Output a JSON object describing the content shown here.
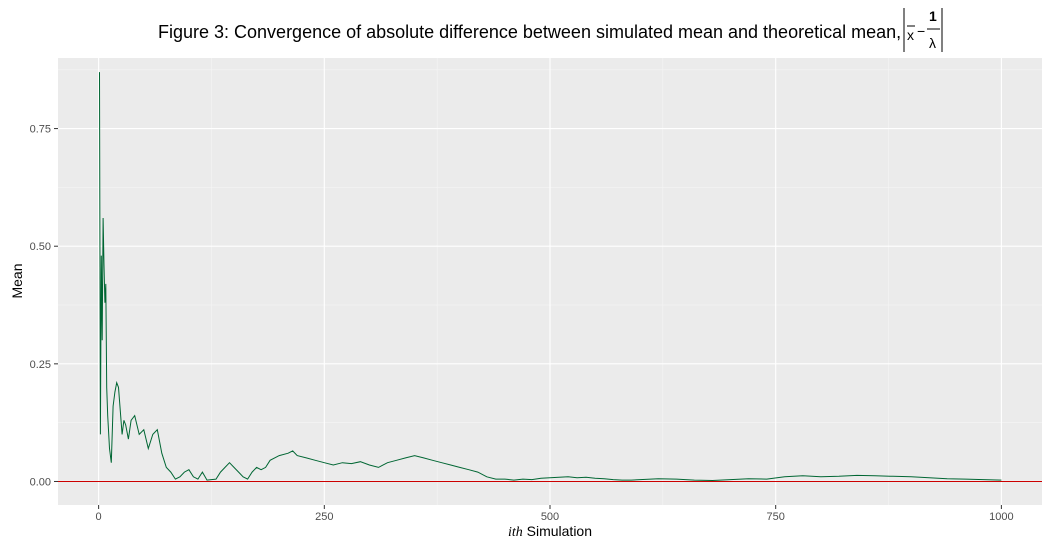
{
  "chart_data": {
    "type": "line",
    "title": "Figure 3: Convergence of absolute difference between simulated mean and theoretical mean,",
    "title_math": {
      "xbar": "x",
      "minus": "−",
      "numerator": "1",
      "denominator": "λ"
    },
    "xlabel_italic": "ith",
    "xlabel_rest": " Simulation",
    "ylabel": "Mean",
    "xlim": [
      -45,
      1045
    ],
    "ylim": [
      -0.05,
      0.9
    ],
    "x_ticks": [
      0,
      250,
      500,
      750,
      1000
    ],
    "x_tick_labels": [
      "0",
      "250",
      "500",
      "750",
      "1000"
    ],
    "y_ticks": [
      0,
      0.25,
      0.5,
      0.75
    ],
    "y_tick_labels": [
      "0.00",
      "0.25",
      "0.50",
      "0.75"
    ],
    "grid": true,
    "reference_line": {
      "y": 0,
      "color": "#cc0000"
    },
    "series": [
      {
        "color": "#006633",
        "x": [
          1,
          2,
          3,
          4,
          5,
          6,
          7,
          8,
          9,
          10,
          12,
          14,
          16,
          18,
          20,
          22,
          24,
          26,
          28,
          30,
          33,
          36,
          40,
          45,
          50,
          55,
          60,
          65,
          70,
          75,
          80,
          85,
          90,
          95,
          100,
          105,
          110,
          115,
          120,
          125,
          130,
          135,
          140,
          145,
          150,
          155,
          160,
          165,
          170,
          175,
          180,
          185,
          190,
          200,
          210,
          215,
          220,
          230,
          240,
          250,
          260,
          270,
          280,
          290,
          300,
          310,
          320,
          330,
          340,
          350,
          360,
          370,
          380,
          390,
          400,
          410,
          420,
          430,
          440,
          450,
          460,
          470,
          480,
          490,
          500,
          510,
          520,
          530,
          540,
          550,
          560,
          570,
          580,
          590,
          600,
          620,
          640,
          660,
          680,
          700,
          720,
          740,
          760,
          780,
          800,
          820,
          840,
          860,
          880,
          900,
          920,
          940,
          960,
          980,
          1000
        ],
        "y": [
          0.87,
          0.1,
          0.48,
          0.3,
          0.56,
          0.46,
          0.38,
          0.42,
          0.2,
          0.14,
          0.07,
          0.04,
          0.16,
          0.19,
          0.21,
          0.2,
          0.15,
          0.1,
          0.13,
          0.12,
          0.09,
          0.13,
          0.14,
          0.1,
          0.11,
          0.07,
          0.1,
          0.11,
          0.06,
          0.03,
          0.02,
          0.005,
          0.01,
          0.02,
          0.025,
          0.01,
          0.005,
          0.02,
          0.003,
          0.004,
          0.005,
          0.02,
          0.03,
          0.04,
          0.03,
          0.02,
          0.01,
          0.005,
          0.02,
          0.03,
          0.025,
          0.03,
          0.045,
          0.055,
          0.06,
          0.065,
          0.055,
          0.05,
          0.045,
          0.04,
          0.035,
          0.04,
          0.038,
          0.042,
          0.035,
          0.03,
          0.04,
          0.045,
          0.05,
          0.055,
          0.05,
          0.045,
          0.04,
          0.035,
          0.03,
          0.025,
          0.02,
          0.01,
          0.005,
          0.005,
          0.003,
          0.005,
          0.004,
          0.007,
          0.008,
          0.009,
          0.01,
          0.008,
          0.009,
          0.007,
          0.006,
          0.004,
          0.003,
          0.003,
          0.004,
          0.006,
          0.005,
          0.003,
          0.002,
          0.004,
          0.006,
          0.005,
          0.01,
          0.012,
          0.01,
          0.011,
          0.013,
          0.012,
          0.011,
          0.01,
          0.008,
          0.006,
          0.005,
          0.004,
          0.003
        ]
      }
    ]
  }
}
